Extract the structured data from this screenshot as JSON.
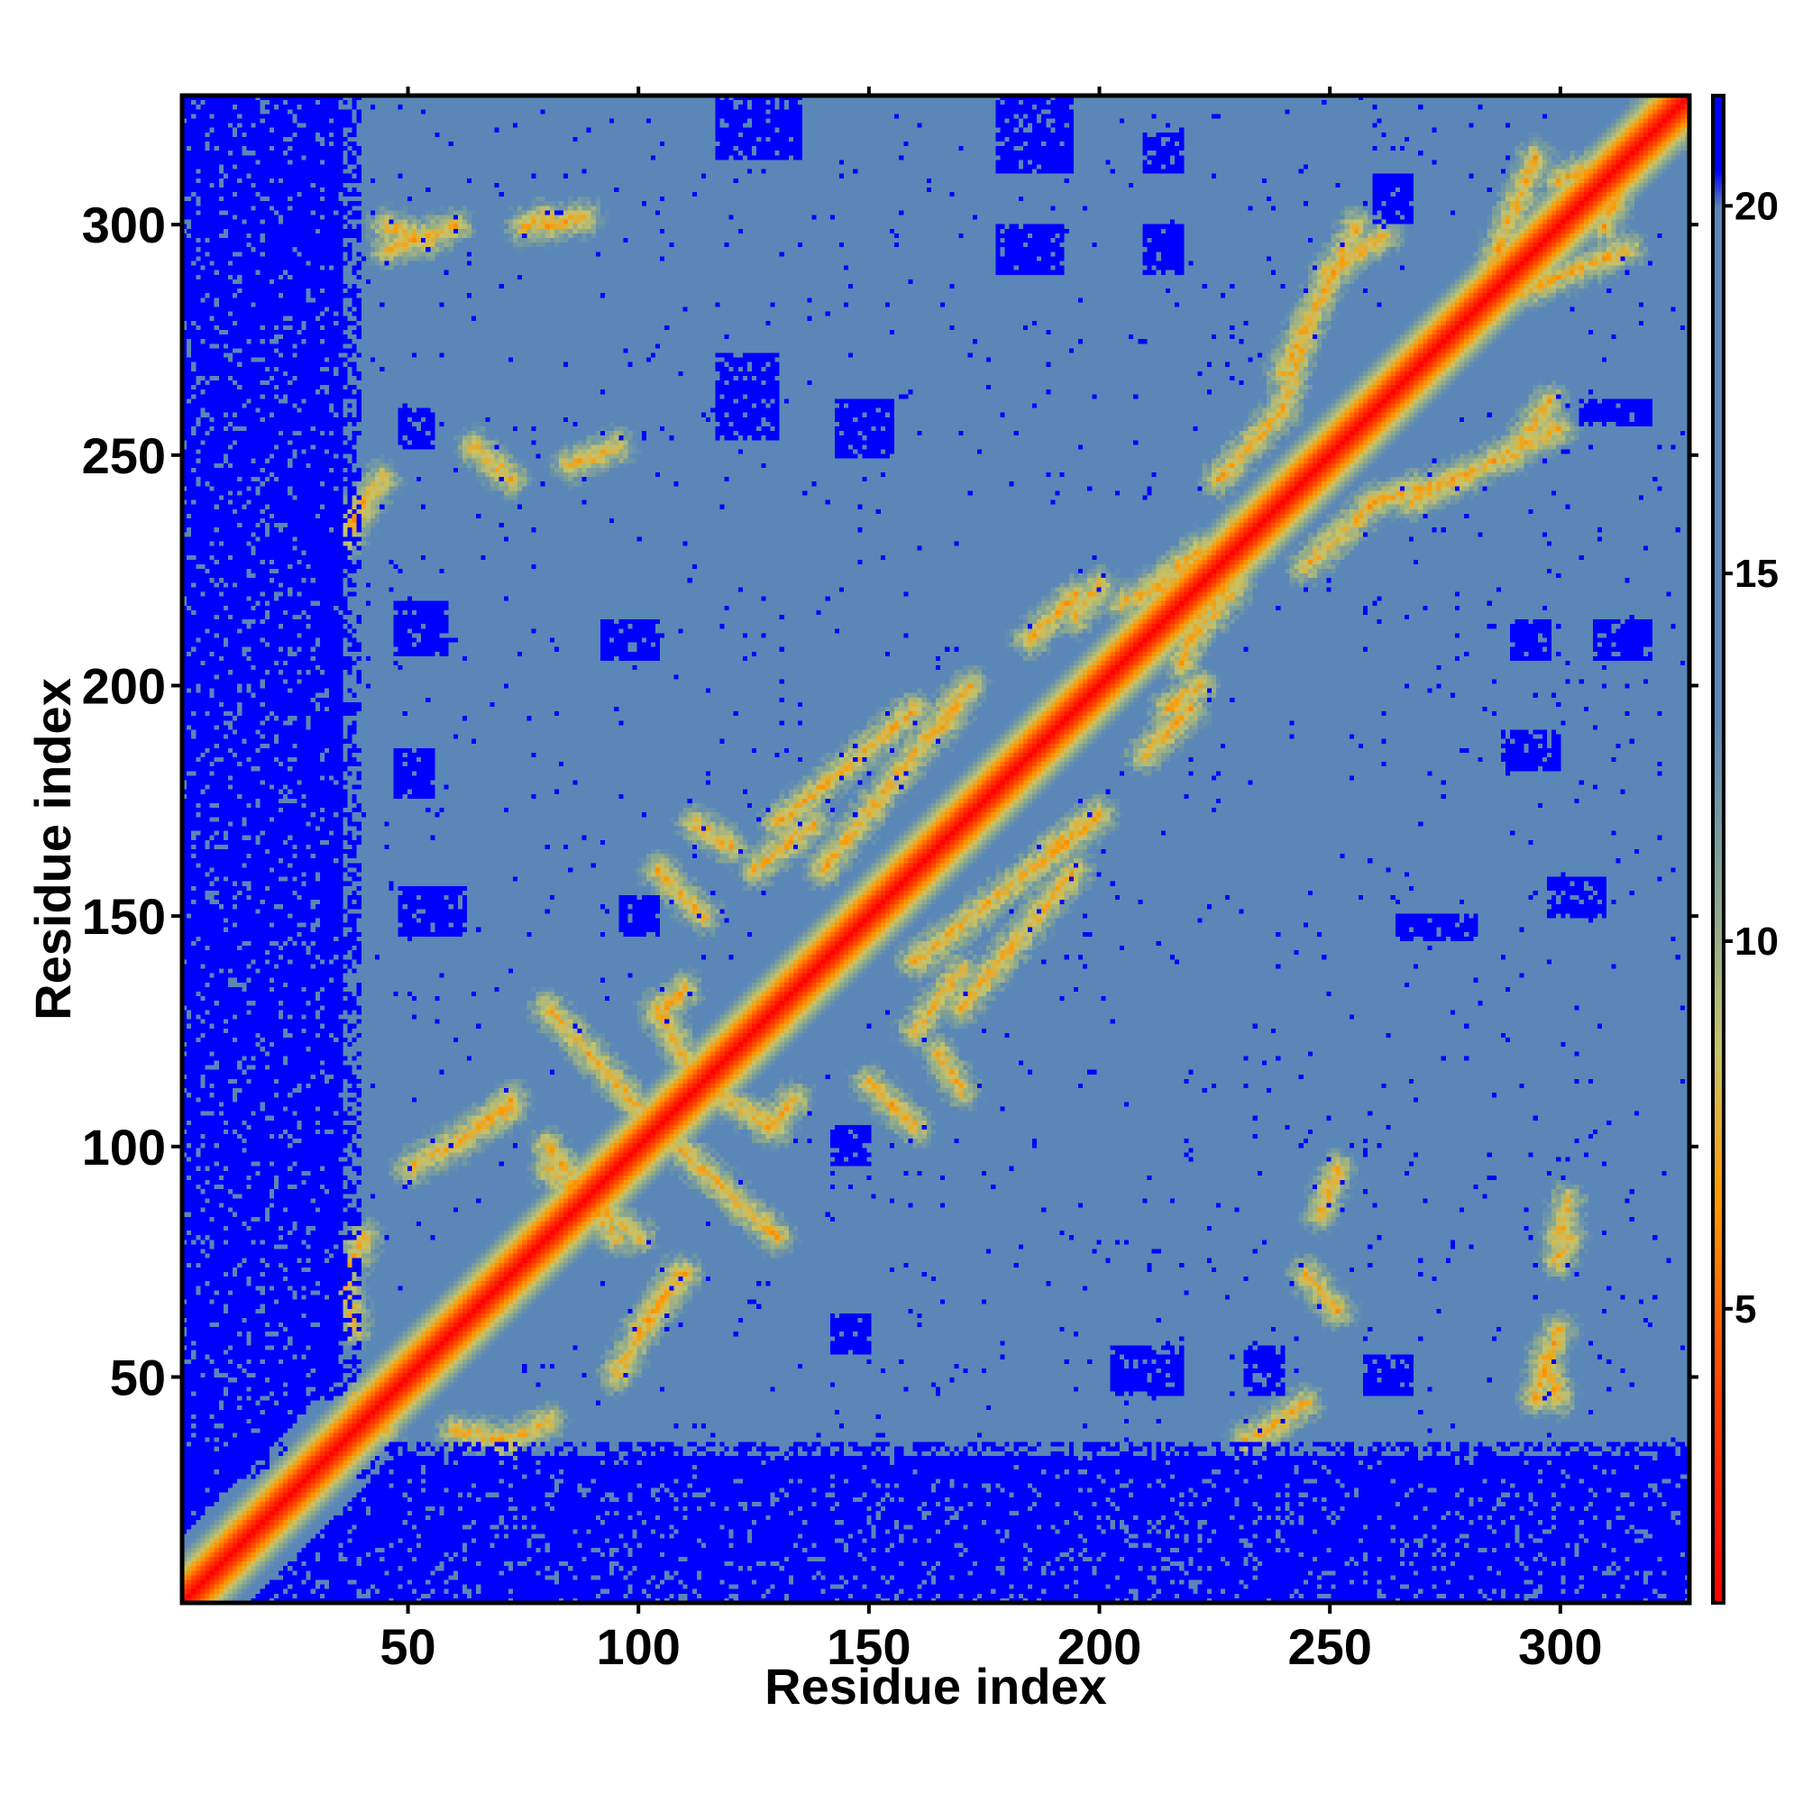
{
  "chart_data": {
    "type": "heatmap",
    "title": "",
    "xlabel": "Residue index",
    "ylabel": "Residue index",
    "xlim": [
      1,
      328
    ],
    "ylim": [
      1,
      328
    ],
    "x_ticks": [
      50,
      100,
      150,
      200,
      250,
      300
    ],
    "x_tick_labels": [
      "50",
      "100",
      "150",
      "200",
      "250",
      "300"
    ],
    "y_ticks": [
      50,
      100,
      150,
      200,
      250,
      300
    ],
    "y_tick_labels": [
      "50",
      "100",
      "150",
      "200",
      "250",
      "300"
    ],
    "colorbar": {
      "range": [
        1,
        21.5
      ],
      "ticks": [
        5,
        10,
        15,
        20
      ],
      "tick_labels": [
        "5",
        "10",
        "15",
        "20"
      ],
      "stops": [
        {
          "value": 1,
          "color": "#ff0000"
        },
        {
          "value": 4,
          "color": "#ff4500"
        },
        {
          "value": 6.5,
          "color": "#ff9a00"
        },
        {
          "value": 8.5,
          "color": "#c6c36a"
        },
        {
          "value": 10.5,
          "color": "#8ba890"
        },
        {
          "value": 13,
          "color": "#5a87b7"
        },
        {
          "value": 20,
          "color": "#5a87b7"
        },
        {
          "value": 20.5,
          "color": "#0000ff"
        },
        {
          "value": 21.5,
          "color": "#0000ff"
        }
      ]
    },
    "colors": {
      "contact": "#ff0000",
      "near": "#ff9a00",
      "mid": "#c6c36a",
      "background": "#5a87b7",
      "far": "#0000ff"
    },
    "diagonal_distance": 1,
    "contact_segments": [
      {
        "from": [
          35,
          70
        ],
        "to": [
          40,
          80
        ]
      },
      {
        "from": [
          38,
          45
        ],
        "to": [
          45,
          38
        ]
      },
      {
        "from": [
          40,
          240
        ],
        "to": [
          36,
          232
        ]
      },
      {
        "from": [
          45,
          300
        ],
        "to": [
          54,
          297
        ]
      },
      {
        "from": [
          50,
          95
        ],
        "to": [
          72,
          108
        ]
      },
      {
        "from": [
          60,
          38
        ],
        "to": [
          70,
          36
        ]
      },
      {
        "from": [
          75,
          300
        ],
        "to": [
          80,
          302
        ]
      },
      {
        "from": [
          80,
          100
        ],
        "to": [
          95,
          80
        ]
      },
      {
        "from": [
          85,
          248
        ],
        "to": [
          95,
          252
        ]
      },
      {
        "from": [
          100,
          60
        ],
        "to": [
          110,
          72
        ]
      },
      {
        "from": [
          104,
          128
        ],
        "to": [
          110,
          134
        ]
      },
      {
        "from": [
          108,
          100
        ],
        "to": [
          130,
          80
        ]
      },
      {
        "from": [
          115,
          112
        ],
        "to": [
          130,
          104
        ]
      },
      {
        "from": [
          125,
          160
        ],
        "to": [
          138,
          170
        ]
      },
      {
        "from": [
          140,
          160
        ],
        "to": [
          170,
          198
        ]
      },
      {
        "from": [
          150,
          114
        ],
        "to": [
          160,
          104
        ]
      },
      {
        "from": [
          165,
          120
        ],
        "to": [
          170,
          112
        ]
      },
      {
        "from": [
          170,
          130
        ],
        "to": [
          195,
          160
        ]
      },
      {
        "from": [
          185,
          210
        ],
        "to": [
          195,
          220
        ]
      },
      {
        "from": [
          200,
          172
        ],
        "to": [
          190,
          165
        ]
      },
      {
        "from": [
          215,
          195
        ],
        "to": [
          222,
          200
        ]
      },
      {
        "from": [
          218,
          205
        ],
        "to": [
          230,
          235
        ]
      },
      {
        "from": [
          220,
          210
        ],
        "to": [
          230,
          222
        ]
      },
      {
        "from": [
          225,
          218
        ],
        "to": [
          235,
          235
        ]
      },
      {
        "from": [
          235,
          37
        ],
        "to": [
          245,
          44
        ]
      },
      {
        "from": [
          245,
          72
        ],
        "to": [
          252,
          64
        ]
      },
      {
        "from": [
          245,
          226
        ],
        "to": [
          260,
          240
        ]
      },
      {
        "from": [
          250,
          290
        ],
        "to": [
          262,
          298
        ]
      },
      {
        "from": [
          260,
          240
        ],
        "to": [
          280,
          246
        ]
      },
      {
        "from": [
          268,
          240
        ],
        "to": [
          300,
          256
        ]
      },
      {
        "from": [
          285,
          290
        ],
        "to": [
          295,
          315
        ]
      },
      {
        "from": [
          295,
          45
        ],
        "to": [
          300,
          60
        ]
      },
      {
        "from": [
          300,
          80
        ],
        "to": [
          302,
          88
        ]
      },
      {
        "from": [
          300,
          310
        ],
        "to": [
          325,
          320
        ]
      }
    ],
    "far_regions": [
      {
        "x": [
          1,
          35
        ],
        "y": [
          30,
          328
        ]
      },
      {
        "x": [
          1,
          328
        ],
        "y": [
          1,
          32
        ]
      },
      {
        "x": [
          48,
          55
        ],
        "y": [
          252,
          260
        ]
      },
      {
        "x": [
          47,
          58
        ],
        "y": [
          207,
          218
        ]
      },
      {
        "x": [
          47,
          55
        ],
        "y": [
          176,
          186
        ]
      },
      {
        "x": [
          48,
          62
        ],
        "y": [
          146,
          156
        ]
      },
      {
        "x": [
          96,
          104
        ],
        "y": [
          146,
          154
        ]
      },
      {
        "x": [
          92,
          104
        ],
        "y": [
          206,
          214
        ]
      },
      {
        "x": [
          117,
          135
        ],
        "y": [
          315,
          328
        ]
      },
      {
        "x": [
          117,
          130
        ],
        "y": [
          254,
          272
        ]
      },
      {
        "x": [
          143,
          155
        ],
        "y": [
          250,
          262
        ]
      },
      {
        "x": [
          142,
          150
        ],
        "y": [
          96,
          104
        ]
      },
      {
        "x": [
          142,
          150
        ],
        "y": [
          55,
          63
        ]
      },
      {
        "x": [
          178,
          192
        ],
        "y": [
          290,
          300
        ]
      },
      {
        "x": [
          178,
          194
        ],
        "y": [
          312,
          328
        ]
      },
      {
        "x": [
          210,
          218
        ],
        "y": [
          290,
          300
        ]
      },
      {
        "x": [
          210,
          218
        ],
        "y": [
          312,
          320
        ]
      },
      {
        "x": [
          203,
          218
        ],
        "y": [
          46,
          56
        ]
      },
      {
        "x": [
          232,
          240
        ],
        "y": [
          46,
          56
        ]
      },
      {
        "x": [
          258,
          268
        ],
        "y": [
          46,
          54
        ]
      },
      {
        "x": [
          260,
          268
        ],
        "y": [
          301,
          311
        ]
      },
      {
        "x": [
          288,
          300
        ],
        "y": [
          182,
          190
        ]
      },
      {
        "x": [
          290,
          298
        ],
        "y": [
          206,
          214
        ]
      },
      {
        "x": [
          308,
          320
        ],
        "y": [
          206,
          214
        ]
      },
      {
        "x": [
          305,
          320
        ],
        "y": [
          257,
          262
        ]
      },
      {
        "x": [
          298,
          310
        ],
        "y": [
          150,
          158
        ]
      },
      {
        "x": [
          265,
          282
        ],
        "y": [
          145,
          150
        ]
      }
    ]
  }
}
